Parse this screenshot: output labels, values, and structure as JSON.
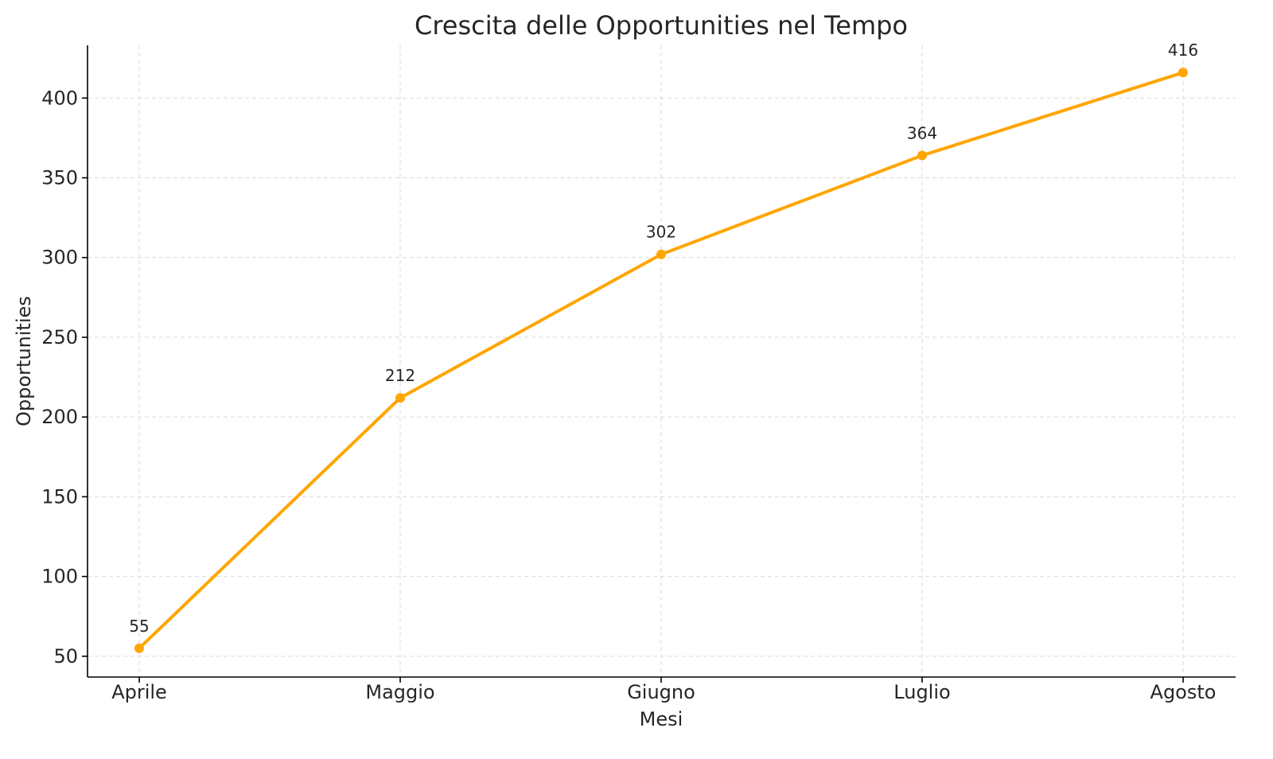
{
  "chart_data": {
    "type": "line",
    "title": "Crescita delle Opportunities nel Tempo",
    "xlabel": "Mesi",
    "ylabel": "Opportunities",
    "categories": [
      "Aprile",
      "Maggio",
      "Giugno",
      "Luglio",
      "Agosto"
    ],
    "series": [
      {
        "values": [
          55,
          212,
          302,
          364,
          416
        ]
      }
    ],
    "yticks": [
      50,
      100,
      150,
      200,
      250,
      300,
      350,
      400
    ],
    "ylim": [
      36.95,
      433.05
    ],
    "grid": true,
    "line_color": "#FFA500",
    "data_labels": [
      "55",
      "212",
      "302",
      "364",
      "416"
    ]
  }
}
